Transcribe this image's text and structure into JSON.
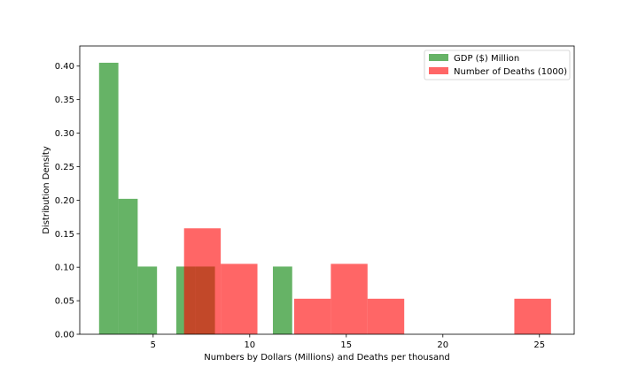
{
  "chart_data": {
    "type": "bar",
    "subtype": "overlapping-histogram",
    "xlabel": "Numbers by Dollars (Millions) and Deaths per thousand",
    "ylabel": "Distribution Density",
    "xlim": [
      1.2,
      26.8
    ],
    "ylim": [
      0,
      0.43
    ],
    "xticks": [
      5,
      10,
      15,
      20,
      25
    ],
    "yticks": [
      0.0,
      0.05,
      0.1,
      0.15,
      0.2,
      0.25,
      0.3,
      0.35,
      0.4
    ],
    "grid": false,
    "legend_position": "top-right",
    "series": [
      {
        "name": "GDP ($) Million",
        "color": "#008000",
        "opacity": 0.6,
        "bins": [
          {
            "x0": 2.2,
            "x1": 3.2,
            "y": 0.405
          },
          {
            "x0": 3.2,
            "x1": 4.2,
            "y": 0.202
          },
          {
            "x0": 4.2,
            "x1": 5.2,
            "y": 0.101
          },
          {
            "x0": 5.2,
            "x1": 6.2,
            "y": 0.0
          },
          {
            "x0": 6.2,
            "x1": 7.2,
            "y": 0.101
          },
          {
            "x0": 7.2,
            "x1": 8.2,
            "y": 0.101
          },
          {
            "x0": 8.2,
            "x1": 9.2,
            "y": 0.0
          },
          {
            "x0": 9.2,
            "x1": 10.2,
            "y": 0.0
          },
          {
            "x0": 10.2,
            "x1": 11.2,
            "y": 0.0
          },
          {
            "x0": 11.2,
            "x1": 12.2,
            "y": 0.101
          }
        ]
      },
      {
        "name": "Number of Deaths (1000)",
        "color": "#ff0000",
        "opacity": 0.6,
        "bins": [
          {
            "x0": 6.6,
            "x1": 8.5,
            "y": 0.158
          },
          {
            "x0": 8.5,
            "x1": 10.4,
            "y": 0.105
          },
          {
            "x0": 10.4,
            "x1": 12.3,
            "y": 0.0
          },
          {
            "x0": 12.3,
            "x1": 14.2,
            "y": 0.053
          },
          {
            "x0": 14.2,
            "x1": 16.1,
            "y": 0.105
          },
          {
            "x0": 16.1,
            "x1": 18.0,
            "y": 0.053
          },
          {
            "x0": 18.0,
            "x1": 19.9,
            "y": 0.0
          },
          {
            "x0": 19.9,
            "x1": 21.8,
            "y": 0.0
          },
          {
            "x0": 21.8,
            "x1": 23.7,
            "y": 0.0
          },
          {
            "x0": 23.7,
            "x1": 25.6,
            "y": 0.053
          }
        ]
      }
    ]
  }
}
